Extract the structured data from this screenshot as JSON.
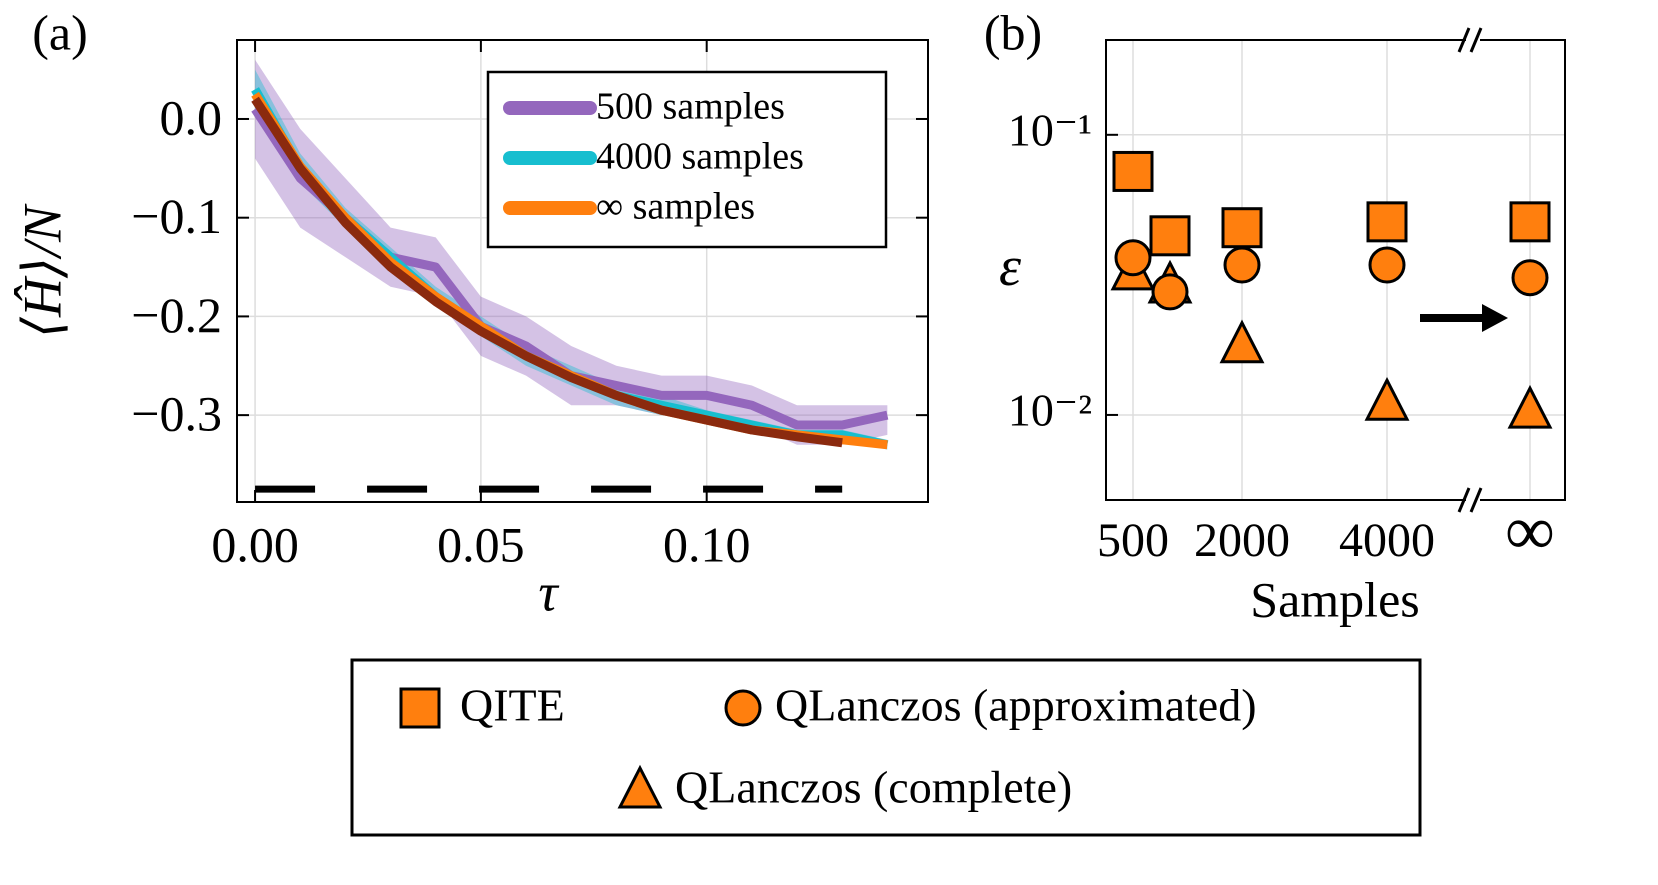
{
  "chart_data": [
    {
      "type": "line",
      "label": "(a)",
      "x_label": "τ",
      "y_label": "⟨Ĥ⟩/N",
      "x": [
        0,
        0.01,
        0.02,
        0.03,
        0.04,
        0.05,
        0.06,
        0.07,
        0.08,
        0.09,
        0.1,
        0.11,
        0.12,
        0.13,
        0.14
      ],
      "xlim": [
        -0.004,
        0.149
      ],
      "ylim": [
        -0.388,
        0.08
      ],
      "xticks": [
        {
          "value": 0,
          "label": "0.00"
        },
        {
          "value": 0.05,
          "label": "0.05"
        },
        {
          "value": 0.1,
          "label": "0.10"
        }
      ],
      "yticks": [
        {
          "value": 0,
          "label": "0.0"
        },
        {
          "value": -0.1,
          "label": "−0.1"
        },
        {
          "value": -0.2,
          "label": "−0.2"
        },
        {
          "value": -0.3,
          "label": "−0.3"
        }
      ],
      "grid": true,
      "legend": "upper right",
      "series": [
        {
          "name": "500 samples",
          "color": "#9467bd",
          "values": [
            0.01,
            -0.06,
            -0.1,
            -0.14,
            -0.15,
            -0.21,
            -0.23,
            -0.26,
            -0.27,
            -0.28,
            -0.28,
            -0.29,
            -0.31,
            -0.31,
            -0.3
          ],
          "upper": [
            0.06,
            -0.01,
            -0.06,
            -0.11,
            -0.12,
            -0.18,
            -0.2,
            -0.23,
            -0.25,
            -0.26,
            -0.26,
            -0.27,
            -0.29,
            -0.29,
            -0.29
          ],
          "lower": [
            -0.04,
            -0.11,
            -0.14,
            -0.17,
            -0.18,
            -0.24,
            -0.26,
            -0.29,
            -0.29,
            -0.3,
            -0.3,
            -0.31,
            -0.33,
            -0.33,
            -0.32
          ]
        },
        {
          "name": "4000 samples",
          "color": "#17becf",
          "values": [
            0.03,
            -0.05,
            -0.1,
            -0.14,
            -0.18,
            -0.21,
            -0.24,
            -0.26,
            -0.28,
            -0.29,
            -0.3,
            -0.31,
            -0.32,
            -0.32,
            -0.33
          ],
          "upper": [
            0.05,
            -0.035,
            -0.09,
            -0.13,
            -0.17,
            -0.2,
            -0.23,
            -0.25,
            -0.27,
            -0.28,
            -0.295,
            -0.305,
            -0.315,
            -0.315,
            -0.325
          ],
          "lower": [
            0.01,
            -0.065,
            -0.11,
            -0.15,
            -0.19,
            -0.22,
            -0.25,
            -0.27,
            -0.29,
            -0.3,
            -0.305,
            -0.315,
            -0.325,
            -0.325,
            -0.335
          ]
        },
        {
          "name": "∞ samples",
          "color": "#ff7f0e",
          "values": [
            0.025,
            -0.048,
            -0.1,
            -0.145,
            -0.18,
            -0.21,
            -0.24,
            -0.26,
            -0.28,
            -0.295,
            -0.305,
            -0.315,
            -0.32,
            -0.325,
            -0.33
          ]
        },
        {
          "color": "#8b2a0e",
          "values": [
            0.02,
            -0.05,
            -0.105,
            -0.15,
            -0.185,
            -0.215,
            -0.24,
            -0.262,
            -0.28,
            -0.295,
            -0.305,
            -0.315,
            -0.322,
            -0.328,
            null
          ]
        },
        {
          "color": "#000000",
          "dash": true,
          "values": [
            -0.375,
            -0.375,
            -0.375,
            -0.375,
            -0.375,
            -0.375,
            -0.375,
            -0.375,
            -0.375,
            -0.375,
            -0.375,
            -0.375,
            -0.375,
            -0.375,
            null
          ]
        }
      ]
    },
    {
      "type": "scatter",
      "label": "(b)",
      "x_label": "Samples",
      "y_label": "ε",
      "categories": [
        "500",
        null,
        "2000",
        "4000",
        "∞"
      ],
      "log_y": true,
      "ylim": [
        0.00497,
        0.218
      ],
      "yticks": [
        {
          "value": 0.1,
          "label": "10⁻¹"
        },
        {
          "value": 0.01,
          "label": "10⁻²"
        }
      ],
      "grid": true,
      "legend": "below",
      "series": [
        {
          "name": "QITE",
          "marker": "square",
          "color": "#ff7f0e",
          "values": [
            0.074,
            0.0436,
            0.0466,
            0.0489,
            0.0489
          ]
        },
        {
          "name": "QLanczos (approximated)",
          "marker": "circle",
          "color": "#ff7f0e",
          "values": [
            0.0364,
            0.0275,
            0.0343,
            0.0343,
            0.0309
          ]
        },
        {
          "name": "QLanczos (complete)",
          "marker": "triangle",
          "color": "#ff7f0e",
          "values": [
            0.0324,
            0.0291,
            0.0178,
            0.0111,
            0.0104
          ]
        }
      ]
    }
  ]
}
